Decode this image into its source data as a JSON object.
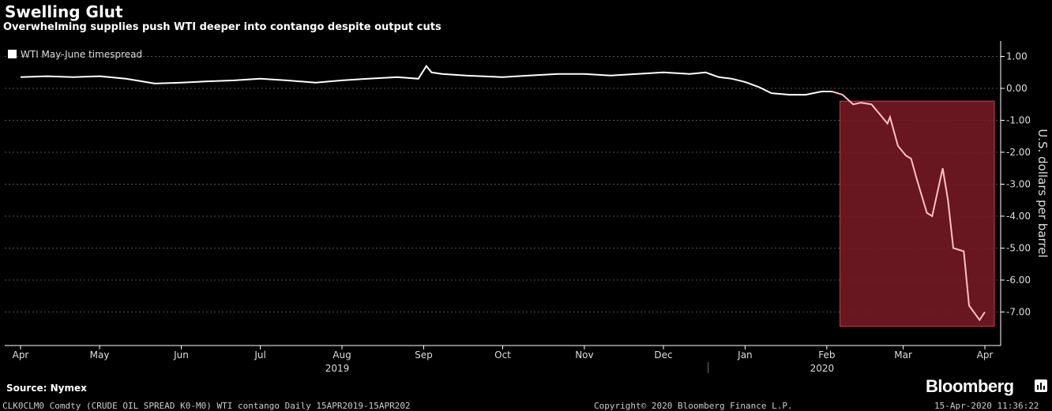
{
  "header": {
    "title": "Swelling Glut",
    "subtitle": "Overwhelming supplies push WTI deeper into contango despite output cuts"
  },
  "footer": {
    "source": "Source: Nymex",
    "brand": "Bloomberg",
    "ticker": "CLK0CLM0 Comdty (CRUDE OIL SPREAD  K0-M0) WTI contango  Daily 15APR2019-15APR202",
    "copyright": "Copyright© 2020 Bloomberg Finance L.P.",
    "timestamp": "15-Apr-2020 11:36:22"
  },
  "colors": {
    "background": "#000000",
    "line": "#ffffff",
    "line_highlight": "#ffc0c8",
    "highlight_fill": "#7a1a24",
    "highlight_stroke": "#c04050"
  },
  "chart_data": {
    "type": "line",
    "legend": "WTI May-June timespread",
    "legend_position": "top-left",
    "ylabel": "U.S. dollars per barrel",
    "ylim": [
      -8,
      1.5
    ],
    "yticks": [
      "1.00",
      "0.00",
      "-1.00",
      "-2.00",
      "-3.00",
      "-4.00",
      "-5.00",
      "-6.00",
      "-7.00"
    ],
    "ytick_values": [
      1,
      0,
      -1,
      -2,
      -3,
      -4,
      -5,
      -6,
      -7
    ],
    "grid": "horizontal dashed",
    "x_range": [
      "2019-04-15",
      "2020-04-15"
    ],
    "month_ticks": [
      {
        "label": "Apr",
        "date": "2019-04-15"
      },
      {
        "label": "May",
        "date": "2019-05-15"
      },
      {
        "label": "Jun",
        "date": "2019-06-15"
      },
      {
        "label": "Jul",
        "date": "2019-07-15"
      },
      {
        "label": "Aug",
        "date": "2019-08-15"
      },
      {
        "label": "Sep",
        "date": "2019-09-15"
      },
      {
        "label": "Oct",
        "date": "2019-10-15"
      },
      {
        "label": "Nov",
        "date": "2019-11-15"
      },
      {
        "label": "Dec",
        "date": "2019-12-15"
      },
      {
        "label": "Jan",
        "date": "2020-01-15"
      },
      {
        "label": "Feb",
        "date": "2020-02-15"
      },
      {
        "label": "Mar",
        "date": "2020-03-15"
      },
      {
        "label": "Apr",
        "date": "2020-04-15"
      }
    ],
    "year_labels": [
      {
        "label": "2019",
        "date": "2019-08-15"
      },
      {
        "label": "2020",
        "date": "2020-02-15"
      }
    ],
    "year_divider": "2020-01-01",
    "highlight": {
      "x": [
        "2020-02-20",
        "2020-04-15"
      ],
      "y": [
        -7.45,
        -0.4
      ]
    },
    "series": [
      {
        "name": "WTI May-June timespread",
        "x": [
          "2019-04-15",
          "2019-04-25",
          "2019-05-05",
          "2019-05-15",
          "2019-05-25",
          "2019-06-05",
          "2019-06-15",
          "2019-06-25",
          "2019-07-05",
          "2019-07-15",
          "2019-07-25",
          "2019-08-05",
          "2019-08-15",
          "2019-08-25",
          "2019-09-05",
          "2019-09-13",
          "2019-09-16",
          "2019-09-18",
          "2019-09-22",
          "2019-10-01",
          "2019-10-15",
          "2019-10-25",
          "2019-11-05",
          "2019-11-15",
          "2019-11-25",
          "2019-12-05",
          "2019-12-15",
          "2019-12-25",
          "2019-12-31",
          "2020-01-05",
          "2020-01-10",
          "2020-01-15",
          "2020-01-20",
          "2020-01-25",
          "2020-02-01",
          "2020-02-07",
          "2020-02-13",
          "2020-02-17",
          "2020-02-21",
          "2020-02-25",
          "2020-02-28",
          "2020-03-03",
          "2020-03-06",
          "2020-03-09",
          "2020-03-10",
          "2020-03-13",
          "2020-03-16",
          "2020-03-18",
          "2020-03-20",
          "2020-03-24",
          "2020-03-26",
          "2020-03-30",
          "2020-04-01",
          "2020-04-03",
          "2020-04-07",
          "2020-04-09",
          "2020-04-13",
          "2020-04-15"
        ],
        "values": [
          0.35,
          0.38,
          0.35,
          0.38,
          0.3,
          0.15,
          0.18,
          0.22,
          0.25,
          0.3,
          0.25,
          0.18,
          0.25,
          0.3,
          0.35,
          0.3,
          0.7,
          0.5,
          0.45,
          0.4,
          0.35,
          0.4,
          0.45,
          0.45,
          0.4,
          0.45,
          0.5,
          0.45,
          0.5,
          0.35,
          0.3,
          0.2,
          0.05,
          -0.15,
          -0.2,
          -0.2,
          -0.1,
          -0.1,
          -0.2,
          -0.5,
          -0.45,
          -0.5,
          -0.8,
          -1.1,
          -0.9,
          -1.8,
          -2.1,
          -2.2,
          -2.8,
          -3.9,
          -4.0,
          -2.5,
          -3.5,
          -5.0,
          -5.1,
          -6.8,
          -7.25,
          -7.0
        ]
      }
    ]
  }
}
